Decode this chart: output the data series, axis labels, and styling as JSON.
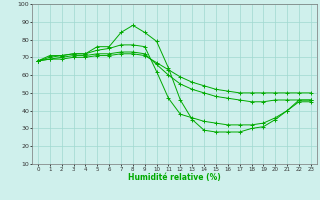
{
  "xlabel": "Humidité relative (%)",
  "background_color": "#cff0ec",
  "grid_color": "#a0d8d0",
  "line_color": "#00aa00",
  "xlim": [
    -0.5,
    23.5
  ],
  "ylim": [
    10,
    100
  ],
  "xticks": [
    0,
    1,
    2,
    3,
    4,
    5,
    6,
    7,
    8,
    9,
    10,
    11,
    12,
    13,
    14,
    15,
    16,
    17,
    18,
    19,
    20,
    21,
    22,
    23
  ],
  "yticks": [
    10,
    20,
    30,
    40,
    50,
    60,
    70,
    80,
    90,
    100
  ],
  "series": [
    [
      68,
      71,
      71,
      72,
      72,
      76,
      76,
      84,
      88,
      84,
      79,
      64,
      46,
      35,
      29,
      28,
      28,
      28,
      30,
      31,
      35,
      40,
      45,
      45
    ],
    [
      68,
      70,
      71,
      72,
      72,
      74,
      75,
      77,
      77,
      76,
      62,
      47,
      38,
      36,
      34,
      33,
      32,
      32,
      32,
      33,
      36,
      40,
      46,
      46
    ],
    [
      68,
      69,
      70,
      71,
      71,
      72,
      72,
      73,
      73,
      72,
      66,
      60,
      55,
      52,
      50,
      48,
      47,
      46,
      45,
      45,
      46,
      46,
      46,
      46
    ],
    [
      68,
      69,
      69,
      70,
      70,
      71,
      71,
      72,
      72,
      71,
      67,
      63,
      59,
      56,
      54,
      52,
      51,
      50,
      50,
      50,
      50,
      50,
      50,
      50
    ]
  ]
}
